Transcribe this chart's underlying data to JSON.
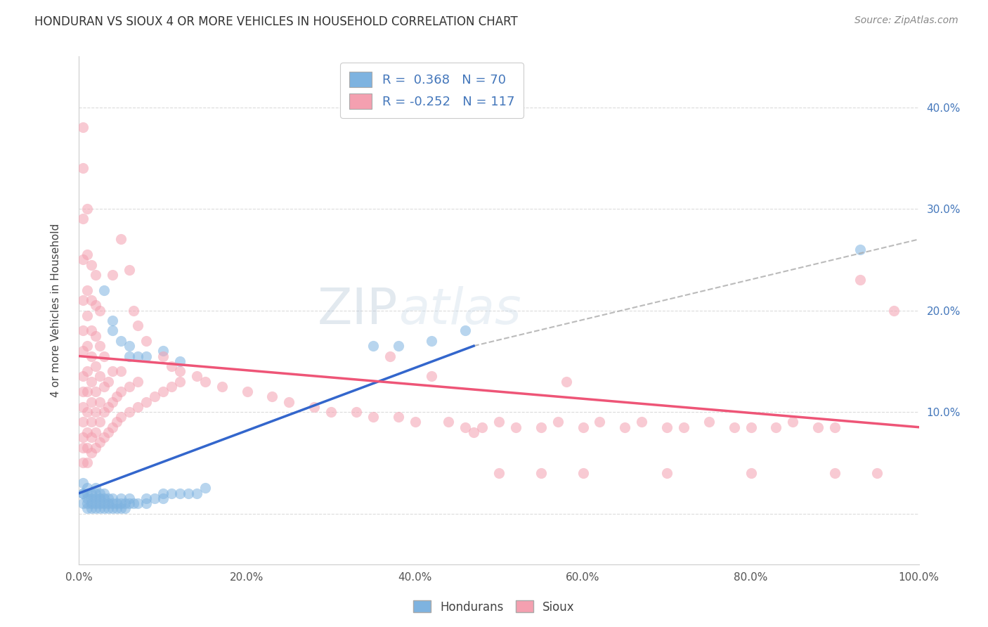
{
  "title": "HONDURAN VS SIOUX 4 OR MORE VEHICLES IN HOUSEHOLD CORRELATION CHART",
  "source": "Source: ZipAtlas.com",
  "ylabel": "4 or more Vehicles in Household",
  "xlim": [
    0.0,
    1.0
  ],
  "ylim": [
    -0.05,
    0.45
  ],
  "xtick_labels": [
    "0.0%",
    "20.0%",
    "40.0%",
    "60.0%",
    "80.0%",
    "100.0%"
  ],
  "xtick_vals": [
    0.0,
    0.2,
    0.4,
    0.6,
    0.8,
    1.0
  ],
  "ytick_labels": [
    "",
    "10.0%",
    "20.0%",
    "30.0%",
    "40.0%"
  ],
  "ytick_vals": [
    0.0,
    0.1,
    0.2,
    0.3,
    0.4
  ],
  "honduran_color": "#7EB3E0",
  "sioux_color": "#F4A0B0",
  "honduran_line_color": "#3366CC",
  "sioux_line_color": "#EE5577",
  "honduran_R": 0.368,
  "honduran_N": 70,
  "sioux_R": -0.252,
  "sioux_N": 117,
  "legend_text_color": "#4477BB",
  "watermark_color": "#C8D8E8",
  "background_color": "#FFFFFF",
  "grid_color": "#CCCCCC",
  "honduran_scatter": [
    [
      0.005,
      0.01
    ],
    [
      0.005,
      0.02
    ],
    [
      0.005,
      0.02
    ],
    [
      0.005,
      0.03
    ],
    [
      0.01,
      0.005
    ],
    [
      0.01,
      0.01
    ],
    [
      0.01,
      0.015
    ],
    [
      0.01,
      0.02
    ],
    [
      0.01,
      0.025
    ],
    [
      0.015,
      0.005
    ],
    [
      0.015,
      0.01
    ],
    [
      0.015,
      0.015
    ],
    [
      0.015,
      0.02
    ],
    [
      0.02,
      0.005
    ],
    [
      0.02,
      0.01
    ],
    [
      0.02,
      0.015
    ],
    [
      0.02,
      0.02
    ],
    [
      0.02,
      0.025
    ],
    [
      0.025,
      0.005
    ],
    [
      0.025,
      0.01
    ],
    [
      0.025,
      0.015
    ],
    [
      0.025,
      0.02
    ],
    [
      0.03,
      0.005
    ],
    [
      0.03,
      0.01
    ],
    [
      0.03,
      0.015
    ],
    [
      0.03,
      0.02
    ],
    [
      0.035,
      0.005
    ],
    [
      0.035,
      0.01
    ],
    [
      0.035,
      0.015
    ],
    [
      0.04,
      0.005
    ],
    [
      0.04,
      0.01
    ],
    [
      0.04,
      0.015
    ],
    [
      0.045,
      0.005
    ],
    [
      0.045,
      0.01
    ],
    [
      0.05,
      0.005
    ],
    [
      0.05,
      0.01
    ],
    [
      0.05,
      0.015
    ],
    [
      0.055,
      0.005
    ],
    [
      0.055,
      0.01
    ],
    [
      0.06,
      0.01
    ],
    [
      0.06,
      0.015
    ],
    [
      0.065,
      0.01
    ],
    [
      0.07,
      0.01
    ],
    [
      0.08,
      0.01
    ],
    [
      0.08,
      0.015
    ],
    [
      0.09,
      0.015
    ],
    [
      0.1,
      0.015
    ],
    [
      0.1,
      0.02
    ],
    [
      0.11,
      0.02
    ],
    [
      0.12,
      0.02
    ],
    [
      0.13,
      0.02
    ],
    [
      0.14,
      0.02
    ],
    [
      0.15,
      0.025
    ],
    [
      0.03,
      0.22
    ],
    [
      0.04,
      0.18
    ],
    [
      0.04,
      0.19
    ],
    [
      0.05,
      0.17
    ],
    [
      0.06,
      0.155
    ],
    [
      0.06,
      0.165
    ],
    [
      0.07,
      0.155
    ],
    [
      0.08,
      0.155
    ],
    [
      0.1,
      0.16
    ],
    [
      0.12,
      0.15
    ],
    [
      0.35,
      0.165
    ],
    [
      0.38,
      0.165
    ],
    [
      0.42,
      0.17
    ],
    [
      0.46,
      0.18
    ],
    [
      0.93,
      0.26
    ]
  ],
  "sioux_scatter": [
    [
      0.005,
      0.05
    ],
    [
      0.005,
      0.065
    ],
    [
      0.005,
      0.075
    ],
    [
      0.005,
      0.09
    ],
    [
      0.005,
      0.105
    ],
    [
      0.005,
      0.12
    ],
    [
      0.005,
      0.135
    ],
    [
      0.005,
      0.16
    ],
    [
      0.005,
      0.18
    ],
    [
      0.005,
      0.21
    ],
    [
      0.005,
      0.25
    ],
    [
      0.005,
      0.29
    ],
    [
      0.005,
      0.34
    ],
    [
      0.005,
      0.38
    ],
    [
      0.01,
      0.05
    ],
    [
      0.01,
      0.065
    ],
    [
      0.01,
      0.08
    ],
    [
      0.01,
      0.1
    ],
    [
      0.01,
      0.12
    ],
    [
      0.01,
      0.14
    ],
    [
      0.01,
      0.165
    ],
    [
      0.01,
      0.195
    ],
    [
      0.01,
      0.22
    ],
    [
      0.01,
      0.255
    ],
    [
      0.01,
      0.3
    ],
    [
      0.015,
      0.06
    ],
    [
      0.015,
      0.075
    ],
    [
      0.015,
      0.09
    ],
    [
      0.015,
      0.11
    ],
    [
      0.015,
      0.13
    ],
    [
      0.015,
      0.155
    ],
    [
      0.015,
      0.18
    ],
    [
      0.015,
      0.21
    ],
    [
      0.015,
      0.245
    ],
    [
      0.02,
      0.065
    ],
    [
      0.02,
      0.08
    ],
    [
      0.02,
      0.1
    ],
    [
      0.02,
      0.12
    ],
    [
      0.02,
      0.145
    ],
    [
      0.02,
      0.175
    ],
    [
      0.02,
      0.205
    ],
    [
      0.02,
      0.235
    ],
    [
      0.025,
      0.07
    ],
    [
      0.025,
      0.09
    ],
    [
      0.025,
      0.11
    ],
    [
      0.025,
      0.135
    ],
    [
      0.025,
      0.165
    ],
    [
      0.025,
      0.2
    ],
    [
      0.03,
      0.075
    ],
    [
      0.03,
      0.1
    ],
    [
      0.03,
      0.125
    ],
    [
      0.03,
      0.155
    ],
    [
      0.035,
      0.08
    ],
    [
      0.035,
      0.105
    ],
    [
      0.035,
      0.13
    ],
    [
      0.04,
      0.085
    ],
    [
      0.04,
      0.11
    ],
    [
      0.04,
      0.14
    ],
    [
      0.045,
      0.09
    ],
    [
      0.045,
      0.115
    ],
    [
      0.05,
      0.095
    ],
    [
      0.05,
      0.12
    ],
    [
      0.05,
      0.14
    ],
    [
      0.06,
      0.1
    ],
    [
      0.06,
      0.125
    ],
    [
      0.07,
      0.105
    ],
    [
      0.07,
      0.13
    ],
    [
      0.08,
      0.11
    ],
    [
      0.09,
      0.115
    ],
    [
      0.1,
      0.12
    ],
    [
      0.11,
      0.125
    ],
    [
      0.12,
      0.13
    ],
    [
      0.04,
      0.235
    ],
    [
      0.05,
      0.27
    ],
    [
      0.06,
      0.24
    ],
    [
      0.065,
      0.2
    ],
    [
      0.07,
      0.185
    ],
    [
      0.08,
      0.17
    ],
    [
      0.1,
      0.155
    ],
    [
      0.11,
      0.145
    ],
    [
      0.12,
      0.14
    ],
    [
      0.14,
      0.135
    ],
    [
      0.15,
      0.13
    ],
    [
      0.17,
      0.125
    ],
    [
      0.2,
      0.12
    ],
    [
      0.23,
      0.115
    ],
    [
      0.25,
      0.11
    ],
    [
      0.28,
      0.105
    ],
    [
      0.3,
      0.1
    ],
    [
      0.33,
      0.1
    ],
    [
      0.35,
      0.095
    ],
    [
      0.38,
      0.095
    ],
    [
      0.4,
      0.09
    ],
    [
      0.42,
      0.135
    ],
    [
      0.44,
      0.09
    ],
    [
      0.46,
      0.085
    ],
    [
      0.48,
      0.085
    ],
    [
      0.5,
      0.09
    ],
    [
      0.52,
      0.085
    ],
    [
      0.55,
      0.085
    ],
    [
      0.57,
      0.09
    ],
    [
      0.6,
      0.085
    ],
    [
      0.62,
      0.09
    ],
    [
      0.65,
      0.085
    ],
    [
      0.67,
      0.09
    ],
    [
      0.7,
      0.085
    ],
    [
      0.72,
      0.085
    ],
    [
      0.75,
      0.09
    ],
    [
      0.78,
      0.085
    ],
    [
      0.8,
      0.085
    ],
    [
      0.83,
      0.085
    ],
    [
      0.85,
      0.09
    ],
    [
      0.88,
      0.085
    ],
    [
      0.9,
      0.085
    ],
    [
      0.37,
      0.155
    ],
    [
      0.47,
      0.08
    ],
    [
      0.58,
      0.13
    ],
    [
      0.93,
      0.23
    ],
    [
      0.97,
      0.2
    ],
    [
      0.5,
      0.04
    ],
    [
      0.55,
      0.04
    ],
    [
      0.6,
      0.04
    ],
    [
      0.7,
      0.04
    ],
    [
      0.8,
      0.04
    ],
    [
      0.9,
      0.04
    ],
    [
      0.95,
      0.04
    ]
  ]
}
